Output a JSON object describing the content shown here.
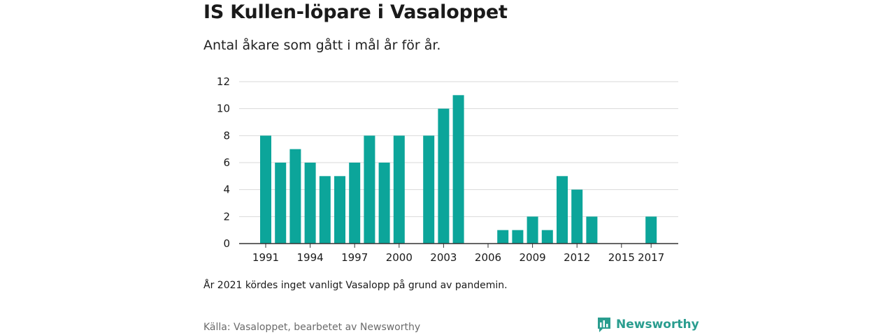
{
  "header": {
    "title": "IS Kullen-löpare i Vasaloppet",
    "subtitle": "Antal åkare som gått i mål år för år."
  },
  "footer": {
    "note": "År 2021 kördes inget vanligt Vasalopp på grund av pandemin.",
    "source": "Källa: Vasaloppet, bearbetet av Newsworthy",
    "brand": "Newsworthy",
    "brand_icon": "newsworthy-logo-icon"
  },
  "colors": {
    "bar": "#0ca59a",
    "grid": "#d9d9d9",
    "axis": "#333333",
    "brand": "#2a9d8f"
  },
  "chart_data": {
    "type": "bar",
    "title": "IS Kullen-löpare i Vasaloppet",
    "subtitle": "Antal åkare som gått i mål år för år.",
    "xlabel": "",
    "ylabel": "",
    "categories": [
      1991,
      1992,
      1993,
      1994,
      1995,
      1996,
      1997,
      1998,
      1999,
      2000,
      2001,
      2002,
      2003,
      2004,
      2005,
      2006,
      2007,
      2008,
      2009,
      2010,
      2011,
      2012,
      2013,
      2014,
      2015,
      2016,
      2017
    ],
    "values": [
      8,
      6,
      7,
      6,
      5,
      5,
      6,
      8,
      6,
      8,
      0,
      8,
      10,
      11,
      0,
      0,
      1,
      1,
      2,
      1,
      5,
      4,
      2,
      0,
      0,
      0,
      2
    ],
    "x_ticks": [
      1991,
      1994,
      1997,
      2000,
      2003,
      2006,
      2009,
      2012,
      2015,
      2017
    ],
    "y_ticks": [
      0,
      2,
      4,
      6,
      8,
      10,
      12
    ],
    "ylim": [
      0,
      12
    ],
    "grid": true,
    "legend": "none"
  }
}
